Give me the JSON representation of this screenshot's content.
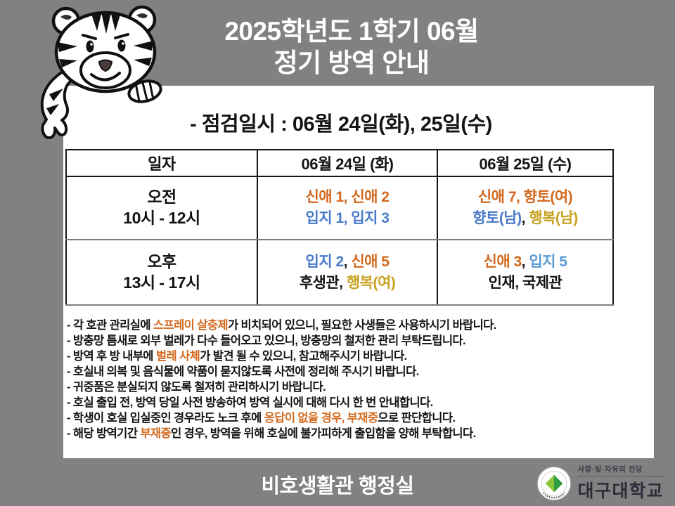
{
  "colors": {
    "page_bg": "#818181",
    "panel_bg": "#ffffff",
    "ink": "#141414",
    "orange": "#d2691e",
    "blue": "#4a7ac9",
    "lightblue": "#5b9bd5",
    "gold": "#c7a11f",
    "title": "#ffffff"
  },
  "title": {
    "line1": "2025학년도 1학기 06월",
    "line2": "정기 방역 안내"
  },
  "subtitle": "- 점검일시 :  06월 24일(화), 25일(수)",
  "table": {
    "headers": [
      "일자",
      "06월 24일 (화)",
      "06월 25일 (수)"
    ],
    "rows": [
      {
        "time": [
          "오전",
          "10시 - 12시"
        ],
        "c2": [
          [
            {
              "t": "신애 1, 신애 2",
              "c": "orange"
            }
          ],
          [
            {
              "t": "입지 1, 입지 3",
              "c": "blue"
            }
          ]
        ],
        "c3": [
          [
            {
              "t": "신애 7, 향토(여)",
              "c": "orange"
            }
          ],
          [
            {
              "t": "향토(남)",
              "c": "blue"
            },
            {
              "t": ", ",
              "c": "black"
            },
            {
              "t": "행복(남)",
              "c": "gold"
            }
          ]
        ]
      },
      {
        "time": [
          "오후",
          "13시 - 17시"
        ],
        "c2": [
          [
            {
              "t": "입지 2",
              "c": "blue"
            },
            {
              "t": ", ",
              "c": "black"
            },
            {
              "t": "신애 5",
              "c": "orange"
            }
          ],
          [
            {
              "t": "후생관, ",
              "c": "black"
            },
            {
              "t": "행복(여)",
              "c": "gold"
            }
          ]
        ],
        "c3": [
          [
            {
              "t": "신애 3",
              "c": "orange"
            },
            {
              "t": ", ",
              "c": "black"
            },
            {
              "t": "입지 5",
              "c": "lightblue"
            }
          ],
          [
            {
              "t": "인재, 국제관",
              "c": "black"
            }
          ]
        ]
      }
    ]
  },
  "notes": [
    [
      {
        "t": "- 각 호관 관리실에 ",
        "c": "black"
      },
      {
        "t": "스프레이 살충제",
        "c": "orange"
      },
      {
        "t": "가 비치되어 있으니, 필요한 사생들은 사용하시기 바랍니다.",
        "c": "black"
      }
    ],
    [
      {
        "t": "- 방충망 틈새로 외부 벌레가 다수 들어오고 있으니, 방충망의 철저한 관리 부탁드립니다.",
        "c": "black"
      }
    ],
    [
      {
        "t": "- 방역 후 방 내부에 ",
        "c": "black"
      },
      {
        "t": "벌레 사체",
        "c": "orange"
      },
      {
        "t": "가 발견 될 수 있으니, 참고해주시기 바랍니다.",
        "c": "black"
      }
    ],
    [
      {
        "t": "- 호실내 의복 및 음식물에 약품이 묻지않도록 사전에 정리해 주시기 바랍니다.",
        "c": "black"
      }
    ],
    [
      {
        "t": "- 귀중품은 분실되지 않도록 철저히 관리하시기 바랍니다.",
        "c": "black"
      }
    ],
    [
      {
        "t": "- 호실 출입 전, 방역 당일 사전 방송하여 방역 실시에 대해 다시 한 번 안내합니다.",
        "c": "black"
      }
    ],
    [
      {
        "t": "- 학생이 호실 입실중인 경우라도 노크 후에 ",
        "c": "black"
      },
      {
        "t": "응답이 없을 경우, 부재중",
        "c": "orange"
      },
      {
        "t": "으로 판단합니다.",
        "c": "black"
      }
    ],
    [
      {
        "t": "- 해당 방역기간 ",
        "c": "black"
      },
      {
        "t": "부재중",
        "c": "orange"
      },
      {
        "t": "인 경우, 방역을 위해 호실에 불가피하게 출입함을 양해 부탁합니다.",
        "c": "black"
      }
    ]
  ],
  "footer": {
    "office": "비호생활관 행정실",
    "univ_tagline": "사랑·빛·자유의 전당",
    "univ_name": "대구대학교"
  }
}
